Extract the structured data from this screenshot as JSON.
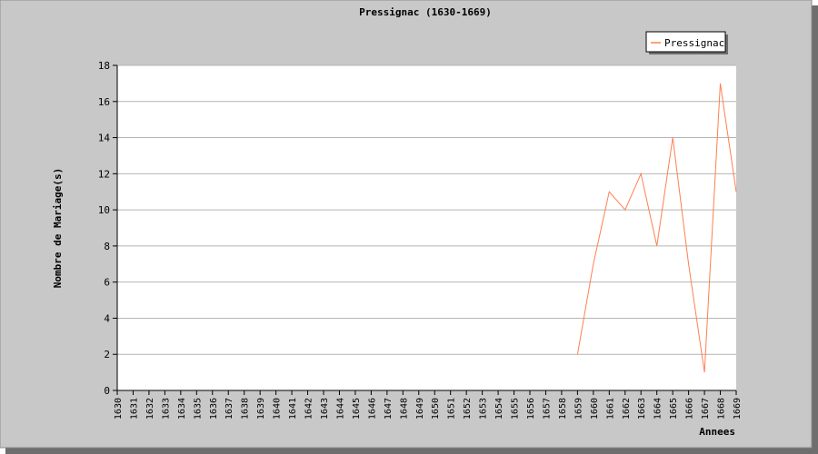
{
  "colors": {
    "background": "#c8c8c8",
    "plot_background": "#ffffff",
    "grid": "#b4b4b4",
    "series": "#ff7f50",
    "shadow": "#6e6e6e"
  },
  "chart_data": {
    "type": "line",
    "title": "Pressignac (1630-1669)",
    "xlabel": "Annees",
    "ylabel": "Nombre de Mariage(s)",
    "ylim": [
      0,
      18
    ],
    "yticks": [
      0,
      2,
      4,
      6,
      8,
      10,
      12,
      14,
      16,
      18
    ],
    "grid": true,
    "legend_position": "top-right",
    "categories": [
      "1630",
      "1631",
      "1632",
      "1633",
      "1634",
      "1635",
      "1636",
      "1637",
      "1638",
      "1639",
      "1640",
      "1641",
      "1642",
      "1643",
      "1644",
      "1645",
      "1646",
      "1647",
      "1648",
      "1649",
      "1650",
      "1651",
      "1652",
      "1653",
      "1654",
      "1655",
      "1656",
      "1657",
      "1658",
      "1659",
      "1660",
      "1661",
      "1662",
      "1663",
      "1664",
      "1665",
      "1666",
      "1667",
      "1668",
      "1669"
    ],
    "series": [
      {
        "name": "Pressignac",
        "values": [
          null,
          null,
          null,
          null,
          null,
          null,
          null,
          null,
          null,
          null,
          null,
          null,
          null,
          null,
          null,
          null,
          null,
          null,
          null,
          null,
          null,
          null,
          null,
          null,
          null,
          null,
          null,
          null,
          null,
          2,
          7,
          11,
          10,
          12,
          8,
          14,
          7,
          1,
          17,
          11
        ]
      }
    ]
  }
}
